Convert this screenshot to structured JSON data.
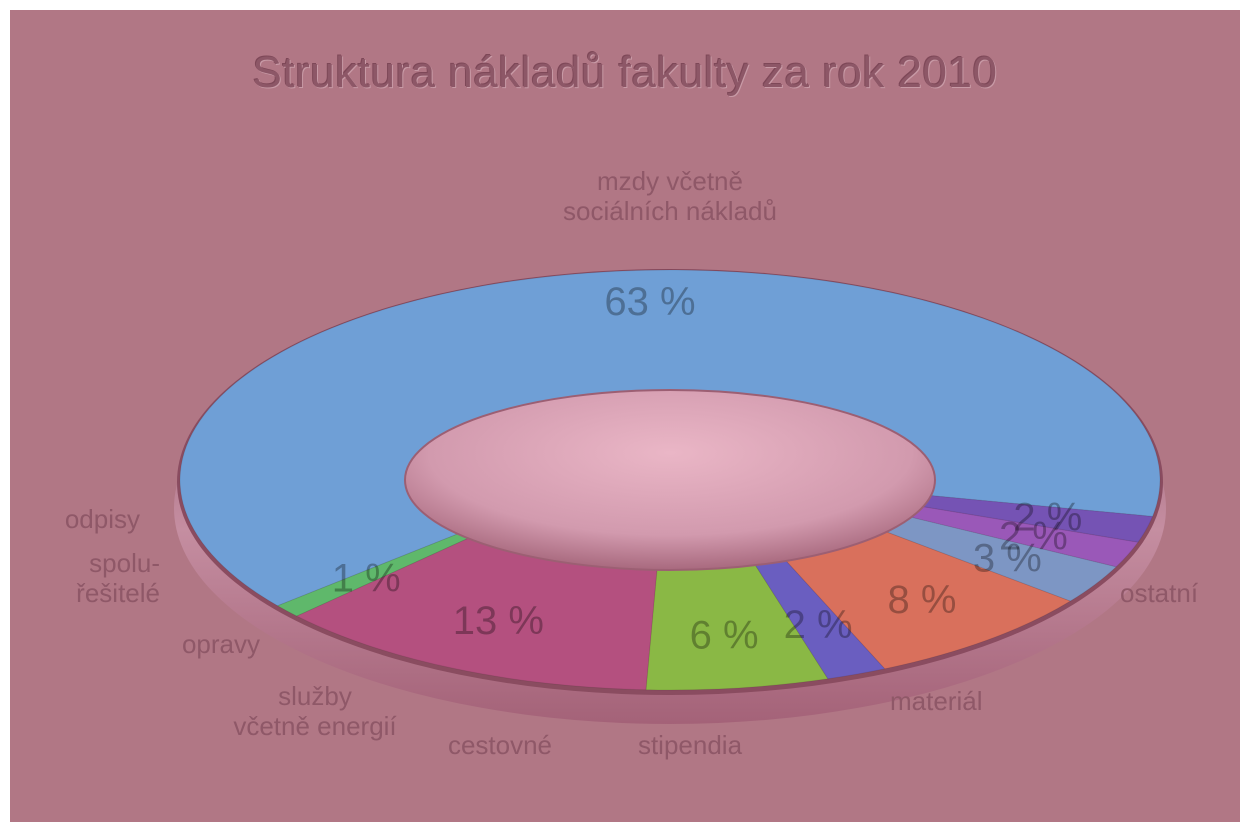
{
  "chart_data": {
    "type": "pie",
    "title": "Struktura nákladů fakulty za rok 2010",
    "unit": "%",
    "slices": [
      {
        "label": "mzdy včetně sociálních nákladů",
        "value": 63,
        "value_label": "63 %",
        "color": "#6f9fd6"
      },
      {
        "label": "ostatní",
        "value": 1,
        "value_label": "1 %",
        "color": "#5fb86b"
      },
      {
        "label": "materiál",
        "value": 13,
        "value_label": "13 %",
        "color": "#b4507f"
      },
      {
        "label": "stipendia",
        "value": 6,
        "value_label": "6 %",
        "color": "#8ab845"
      },
      {
        "label": "cestovné",
        "value": 2,
        "value_label": "2 %",
        "color": "#6a5ec0"
      },
      {
        "label": "služby včetně energií",
        "value": 8,
        "value_label": "8 %",
        "color": "#d9705c"
      },
      {
        "label": "opravy",
        "value": 3,
        "value_label": "3 %",
        "color": "#7d96c4"
      },
      {
        "label": "spolu-řešitelé",
        "value": 2,
        "value_label": "2 %",
        "color": "#9a58b8"
      },
      {
        "label": "odpisy",
        "value": 2,
        "value_label": "2 %",
        "color": "#7553b4"
      }
    ]
  }
}
